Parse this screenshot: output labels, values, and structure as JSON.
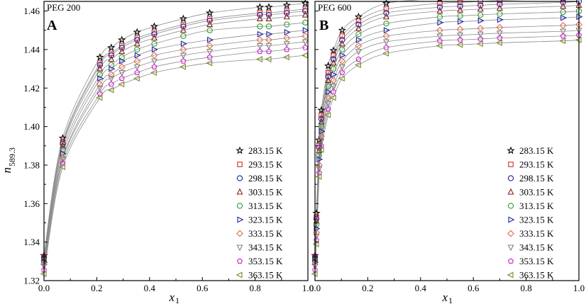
{
  "chart_data": [
    {
      "type": "scatter",
      "panel_label": "A",
      "subtitle": "PEG 200",
      "xlabel": "x",
      "xlabel_sub": "1",
      "ylabel": "n",
      "ylabel_sub": "589.3",
      "xlim": [
        0.0,
        1.0
      ],
      "ylim": [
        1.32,
        1.465
      ],
      "x_ticks": [
        "0.0",
        "0.2",
        "0.4",
        "0.6",
        "0.8",
        "1.0"
      ],
      "y_ticks": [
        "1.32",
        "1.34",
        "1.36",
        "1.38",
        "1.40",
        "1.42",
        "1.44",
        "1.46"
      ],
      "grid": false,
      "legend_position": "bottom-right",
      "fit_curves": true,
      "x": [
        0,
        0.071,
        0.212,
        0.255,
        0.295,
        0.353,
        0.418,
        0.528,
        0.628,
        0.818,
        0.852,
        0.92,
        0.99
      ],
      "series": [
        {
          "name": "283.15 K",
          "marker": "star",
          "color": "#000000",
          "values": [
            1.333,
            1.394,
            1.436,
            1.441,
            1.445,
            1.449,
            1.452,
            1.456,
            1.459,
            1.462,
            1.462,
            1.463,
            1.464
          ]
        },
        {
          "name": "293.15 K",
          "marker": "square",
          "color": "#d62728",
          "values": [
            1.3325,
            1.392,
            1.433,
            1.438,
            1.442,
            1.446,
            1.449,
            1.453,
            1.456,
            1.459,
            1.459,
            1.46,
            1.461
          ]
        },
        {
          "name": "298.15 K",
          "marker": "circle",
          "color": "#1f1fa0",
          "values": [
            1.332,
            1.391,
            1.432,
            1.437,
            1.441,
            1.445,
            1.448,
            1.452,
            1.455,
            1.458,
            1.458,
            1.459,
            1.46
          ]
        },
        {
          "name": "303.15 K",
          "marker": "triangle-up",
          "color": "#8b1a1a",
          "values": [
            1.3315,
            1.39,
            1.43,
            1.435,
            1.439,
            1.443,
            1.446,
            1.45,
            1.453,
            1.456,
            1.456,
            1.457,
            1.458
          ]
        },
        {
          "name": "313.15 K",
          "marker": "circle",
          "color": "#2ca02c",
          "values": [
            1.3305,
            1.388,
            1.427,
            1.432,
            1.436,
            1.44,
            1.443,
            1.447,
            1.45,
            1.452,
            1.452,
            1.453,
            1.454
          ]
        },
        {
          "name": "323.15 K",
          "marker": "triangle-right",
          "color": "#1f1fa0",
          "values": [
            1.3295,
            1.386,
            1.425,
            1.43,
            1.434,
            1.437,
            1.44,
            1.443,
            1.445,
            1.448,
            1.448,
            1.449,
            1.45
          ]
        },
        {
          "name": "333.15 K",
          "marker": "diamond",
          "color": "#e07050",
          "values": [
            1.3285,
            1.384,
            1.422,
            1.427,
            1.431,
            1.434,
            1.437,
            1.44,
            1.442,
            1.445,
            1.445,
            1.446,
            1.447
          ]
        },
        {
          "name": "343.15 K",
          "marker": "triangle-down",
          "color": "#7f7f7f",
          "values": [
            1.3275,
            1.383,
            1.42,
            1.425,
            1.428,
            1.431,
            1.434,
            1.437,
            1.439,
            1.442,
            1.442,
            1.443,
            1.444
          ]
        },
        {
          "name": "353.15 K",
          "marker": "pentagon",
          "color": "#d020d0",
          "values": [
            1.3255,
            1.381,
            1.417,
            1.422,
            1.425,
            1.428,
            1.431,
            1.434,
            1.436,
            1.439,
            1.439,
            1.44,
            1.441
          ]
        },
        {
          "name": "363.15 K",
          "marker": "triangle-left",
          "color": "#7a8a2a",
          "values": [
            1.3235,
            1.379,
            1.415,
            1.419,
            1.422,
            1.425,
            1.428,
            1.431,
            1.433,
            1.435,
            1.435,
            1.436,
            1.437
          ]
        }
      ]
    },
    {
      "type": "scatter",
      "panel_label": "B",
      "subtitle": "PEG 600",
      "xlabel": "x",
      "xlabel_sub": "1",
      "ylabel": "",
      "ylabel_sub": "",
      "xlim": [
        0.0,
        1.0
      ],
      "ylim": [
        1.32,
        1.465
      ],
      "x_ticks": [
        "0.0",
        "0.2",
        "0.4",
        "0.6",
        "0.8",
        "1.0"
      ],
      "y_ticks": [],
      "grid": false,
      "legend_position": "bottom-right",
      "fit_curves": true,
      "x": [
        0,
        0.0053,
        0.0156,
        0.024,
        0.05,
        0.07,
        0.103,
        0.165,
        0.27,
        0.473,
        0.55,
        0.627,
        0.7,
        0.94,
        1.0
      ],
      "series": [
        {
          "name": "283.15 K",
          "marker": "star",
          "color": "#000000",
          "values": [
            1.333,
            1.355,
            1.393,
            1.4085,
            1.4315,
            1.4395,
            1.45,
            1.457,
            1.464,
            1.4665,
            1.467,
            1.4675,
            1.468,
            1.469,
            1.4695
          ]
        },
        {
          "name": "293.15 K",
          "marker": "square",
          "color": "#d62728",
          "values": [
            1.3325,
            1.353,
            1.39,
            1.406,
            1.428,
            1.437,
            1.447,
            1.455,
            1.461,
            1.464,
            1.4645,
            1.465,
            1.4655,
            1.4665,
            1.467
          ]
        },
        {
          "name": "298.15 K",
          "marker": "circle",
          "color": "#1f1fa0",
          "values": [
            1.332,
            1.352,
            1.389,
            1.404,
            1.426,
            1.435,
            1.445,
            1.453,
            1.459,
            1.462,
            1.4625,
            1.463,
            1.4635,
            1.4645,
            1.465
          ]
        },
        {
          "name": "303.15 K",
          "marker": "triangle-up",
          "color": "#8b1a1a",
          "values": [
            1.3315,
            1.351,
            1.3875,
            1.4025,
            1.424,
            1.433,
            1.443,
            1.451,
            1.457,
            1.46,
            1.4605,
            1.461,
            1.4615,
            1.4625,
            1.463
          ]
        },
        {
          "name": "313.15 K",
          "marker": "circle",
          "color": "#2ca02c",
          "values": [
            1.3305,
            1.349,
            1.385,
            1.4,
            1.421,
            1.43,
            1.44,
            1.448,
            1.4535,
            1.457,
            1.4575,
            1.458,
            1.4585,
            1.4595,
            1.46
          ]
        },
        {
          "name": "323.15 K",
          "marker": "triangle-right",
          "color": "#1f1fa0",
          "values": [
            1.3295,
            1.347,
            1.383,
            1.3975,
            1.418,
            1.427,
            1.437,
            1.445,
            1.45,
            1.454,
            1.4545,
            1.455,
            1.4555,
            1.4565,
            1.457
          ]
        },
        {
          "name": "333.15 K",
          "marker": "diamond",
          "color": "#e07050",
          "values": [
            1.3285,
            1.345,
            1.38,
            1.395,
            1.415,
            1.424,
            1.434,
            1.442,
            1.447,
            1.45,
            1.4505,
            1.451,
            1.4515,
            1.4525,
            1.453
          ]
        },
        {
          "name": "343.15 K",
          "marker": "triangle-down",
          "color": "#7f7f7f",
          "values": [
            1.3275,
            1.343,
            1.378,
            1.3925,
            1.412,
            1.421,
            1.431,
            1.439,
            1.444,
            1.447,
            1.4475,
            1.448,
            1.4485,
            1.4495,
            1.45
          ]
        },
        {
          "name": "353.15 K",
          "marker": "pentagon",
          "color": "#d020d0",
          "values": [
            1.3255,
            1.341,
            1.376,
            1.39,
            1.409,
            1.418,
            1.428,
            1.435,
            1.441,
            1.4445,
            1.445,
            1.4455,
            1.446,
            1.447,
            1.4475
          ]
        },
        {
          "name": "363.15 K",
          "marker": "triangle-left",
          "color": "#7a8a2a",
          "values": [
            1.3235,
            1.339,
            1.374,
            1.388,
            1.406,
            1.415,
            1.425,
            1.432,
            1.438,
            1.442,
            1.4425,
            1.443,
            1.4435,
            1.4445,
            1.445
          ]
        }
      ]
    }
  ]
}
